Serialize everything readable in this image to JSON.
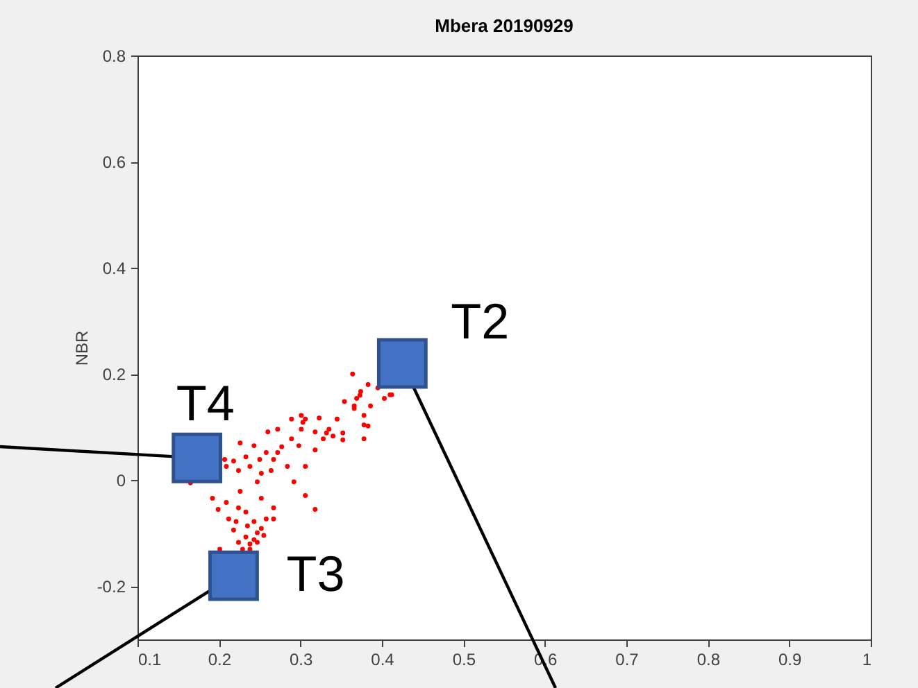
{
  "chart_data": {
    "type": "scatter",
    "title": "Mbera 20190929",
    "ylabel": "NBR",
    "xlim": [
      0.1,
      1
    ],
    "ylim": [
      -0.3,
      0.8
    ],
    "xticks": [
      0.1,
      0.2,
      0.3,
      0.4,
      0.5,
      0.6,
      0.7,
      0.8,
      0.9,
      1
    ],
    "yticks": [
      -0.2,
      0,
      0.2,
      0.4,
      0.6,
      0.8
    ],
    "series": [
      {
        "color": "#ff0000",
        "marker": "circle",
        "x": [
          0.364,
          0.383,
          0.373,
          0.403,
          0.366,
          0.386,
          0.354,
          0.345,
          0.323,
          0.34,
          0.303,
          0.272,
          0.26,
          0.289,
          0.318,
          0.328,
          0.298,
          0.277,
          0.258,
          0.243,
          0.226,
          0.233,
          0.218,
          0.224,
          0.238,
          0.25,
          0.267,
          0.284,
          0.306,
          0.292,
          0.252,
          0.264,
          0.209,
          0.247,
          0.272,
          0.318,
          0.289,
          0.301,
          0.352,
          0.335,
          0.378,
          0.412,
          0.306,
          0.318,
          0.192,
          0.199,
          0.209,
          0.226,
          0.224,
          0.252,
          0.267,
          0.233,
          0.221,
          0.243,
          0.258,
          0.235,
          0.252,
          0.267,
          0.218,
          0.247,
          0.233,
          0.255,
          0.224,
          0.238,
          0.243,
          0.229,
          0.238,
          0.201,
          0.247,
          0.212,
          0.165,
          0.207,
          0.395,
          0.41,
          0.374,
          0.369,
          0.366,
          0.378,
          0.383,
          0.352,
          0.378,
          0.332,
          0.306,
          0.301
        ],
        "values": [
          0.2,
          0.18,
          0.16,
          0.154,
          0.14,
          0.14,
          0.148,
          0.115,
          0.117,
          0.083,
          0.109,
          0.096,
          0.091,
          0.078,
          0.091,
          0.078,
          0.065,
          0.063,
          0.052,
          0.065,
          0.07,
          0.044,
          0.036,
          0.018,
          0.026,
          0.039,
          0.039,
          0.026,
          0.026,
          -0.003,
          0.013,
          0.018,
          0.026,
          -0.003,
          0.052,
          0.057,
          0.115,
          0.096,
          0.089,
          0.096,
          0.104,
          0.161,
          -0.029,
          -0.055,
          -0.034,
          -0.055,
          -0.042,
          -0.021,
          -0.052,
          -0.034,
          -0.052,
          -0.06,
          -0.078,
          -0.078,
          -0.073,
          -0.086,
          -0.091,
          -0.073,
          -0.094,
          -0.099,
          -0.107,
          -0.104,
          -0.117,
          -0.12,
          -0.112,
          -0.13,
          -0.13,
          -0.13,
          -0.117,
          -0.073,
          -0.005,
          0.039,
          0.174,
          0.161,
          0.167,
          0.154,
          0.135,
          0.122,
          0.102,
          0.076,
          0.078,
          0.089,
          0.115,
          0.122
        ]
      },
      {
        "color": "#4472c4",
        "marker": "square",
        "x": [
          0.425,
          0.218,
          0.173
        ],
        "values": [
          0.22,
          -0.18,
          0.042
        ]
      }
    ],
    "annotations": [
      "T2",
      "T3",
      "T4"
    ]
  }
}
